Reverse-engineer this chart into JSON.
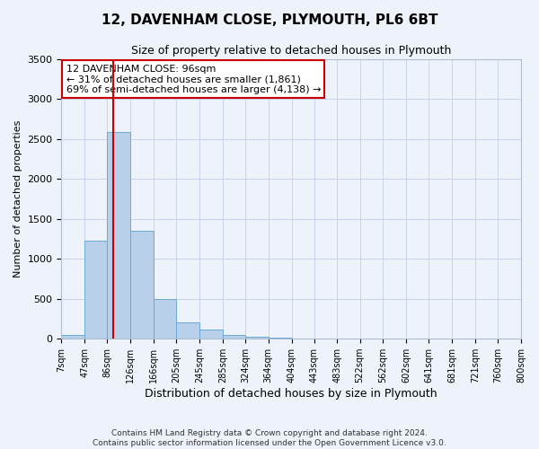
{
  "title_line1": "12, DAVENHAM CLOSE, PLYMOUTH, PL6 6BT",
  "title_line2": "Size of property relative to detached houses in Plymouth",
  "xlabel": "Distribution of detached houses by size in Plymouth",
  "ylabel": "Number of detached properties",
  "bin_edges": [
    7,
    47,
    86,
    126,
    166,
    205,
    245,
    285,
    324,
    364,
    404,
    443,
    483,
    522,
    562,
    602,
    641,
    681,
    721,
    760,
    800
  ],
  "bar_heights": [
    45,
    1230,
    2590,
    1350,
    500,
    200,
    110,
    45,
    20,
    10,
    5,
    5,
    3,
    2,
    1,
    1,
    1,
    1,
    1,
    1
  ],
  "bar_color": "#b8d0ea",
  "bar_edge_color": "#6aaad4",
  "vline_x": 96,
  "vline_color": "#cc0000",
  "ylim": [
    0,
    3500
  ],
  "annotation_title": "12 DAVENHAM CLOSE: 96sqm",
  "annotation_line2": "← 31% of detached houses are smaller (1,861)",
  "annotation_line3": "69% of semi-detached houses are larger (4,138) →",
  "annotation_box_facecolor": "#ffffff",
  "annotation_box_edgecolor": "#cc0000",
  "footer_line1": "Contains HM Land Registry data © Crown copyright and database right 2024.",
  "footer_line2": "Contains public sector information licensed under the Open Government Licence v3.0.",
  "background_color": "#eef2fb",
  "grid_color": "#c8d4e8",
  "title1_fontsize": 11,
  "title2_fontsize": 9,
  "ylabel_fontsize": 8,
  "xlabel_fontsize": 9
}
